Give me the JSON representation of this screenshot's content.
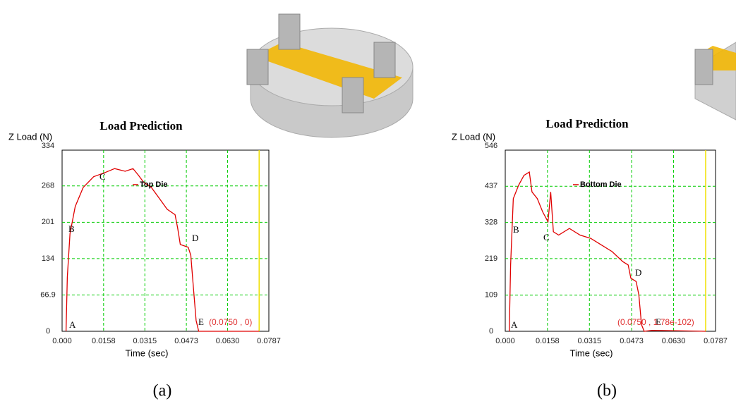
{
  "chart_data": [
    {
      "type": "line",
      "title": "Load Prediction",
      "y_label": "Z Load (N)",
      "x_label": "Time (sec)",
      "caption": "(a)",
      "x": [
        0.0015,
        0.002,
        0.003,
        0.005,
        0.008,
        0.012,
        0.016,
        0.02,
        0.024,
        0.027,
        0.029,
        0.031,
        0.034,
        0.037,
        0.04,
        0.043,
        0.044,
        0.045,
        0.048,
        0.049,
        0.05,
        0.051,
        0.052,
        0.075
      ],
      "series": [
        {
          "name": "Top Die",
          "color": "#e00000",
          "values": [
            0,
            100,
            180,
            230,
            265,
            285,
            292,
            300,
            295,
            300,
            288,
            275,
            265,
            245,
            225,
            215,
            190,
            160,
            155,
            140,
            80,
            20,
            0,
            0
          ]
        }
      ],
      "xlim": [
        0,
        0.0787
      ],
      "xticks": [
        {
          "value": 0,
          "label": "0.000"
        },
        0.0158,
        0.0315,
        0.0473,
        {
          "value": 0.063,
          "label": "0.0630"
        },
        0.0787
      ],
      "ylim": [
        0,
        334
      ],
      "yticks": [
        0,
        66.9,
        134,
        201,
        268,
        334
      ],
      "grid": true,
      "grid_color": "#00cc00",
      "point_labels": [
        "A",
        "B",
        "C",
        "D",
        "E"
      ],
      "cursor_x": 0.075,
      "cursor_color": "#f0e000",
      "cursor_label": "(0.0750 , 0)"
    },
    {
      "type": "line",
      "title": "Load Prediction",
      "y_label": "Z Load (N)",
      "x_label": "Time (sec)",
      "caption": "(b)",
      "x": [
        0.0015,
        0.002,
        0.003,
        0.005,
        0.007,
        0.009,
        0.01,
        0.012,
        0.014,
        0.016,
        0.017,
        0.018,
        0.02,
        0.024,
        0.028,
        0.032,
        0.036,
        0.04,
        0.044,
        0.046,
        0.047,
        0.049,
        0.05,
        0.051,
        0.052,
        0.055,
        0.075
      ],
      "series": [
        {
          "name": "Bottom Die",
          "color": "#e00000",
          "values": [
            0,
            200,
            400,
            440,
            470,
            480,
            420,
            400,
            360,
            330,
            420,
            300,
            290,
            310,
            290,
            280,
            260,
            240,
            210,
            200,
            160,
            150,
            110,
            20,
            0,
            3,
            0
          ]
        }
      ],
      "xlim": [
        0,
        0.0787
      ],
      "xticks": [
        {
          "value": 0,
          "label": "0.000"
        },
        0.0158,
        0.0315,
        0.0473,
        {
          "value": 0.063,
          "label": "0.0630"
        },
        0.0787
      ],
      "ylim": [
        0,
        546
      ],
      "yticks": [
        0,
        109,
        219,
        328,
        437,
        546
      ],
      "grid": true,
      "grid_color": "#00cc00",
      "point_labels": [
        "A",
        "B",
        "C",
        "D",
        "E"
      ],
      "cursor_x": 0.075,
      "cursor_color": "#f0e000",
      "cursor_label": "(0.0750 , 1.78e-102)"
    }
  ]
}
